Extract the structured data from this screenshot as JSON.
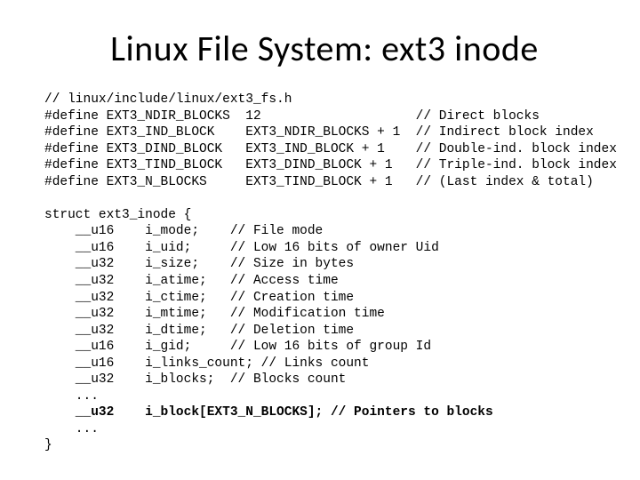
{
  "title": "Linux File System: ext3 inode",
  "defines": {
    "header": "// linux/include/linux/ext3_fs.h",
    "lines": [
      {
        "name": "EXT3_NDIR_BLOCKS",
        "value": "12",
        "comment": "// Direct blocks"
      },
      {
        "name": "EXT3_IND_BLOCK",
        "value": "EXT3_NDIR_BLOCKS + 1",
        "comment": "// Indirect block index"
      },
      {
        "name": "EXT3_DIND_BLOCK",
        "value": "EXT3_IND_BLOCK + 1",
        "comment": "// Double-ind. block index"
      },
      {
        "name": "EXT3_TIND_BLOCK",
        "value": "EXT3_DIND_BLOCK + 1",
        "comment": "// Triple-ind. block index"
      },
      {
        "name": "EXT3_N_BLOCKS",
        "value": "EXT3_TIND_BLOCK + 1",
        "comment": "// (Last index & total)"
      }
    ]
  },
  "struct": {
    "open": "struct ext3_inode {",
    "fields": [
      {
        "type": "__u16",
        "name": "i_mode;",
        "comment": "// File mode"
      },
      {
        "type": "__u16",
        "name": "i_uid;",
        "comment": "// Low 16 bits of owner Uid"
      },
      {
        "type": "__u32",
        "name": "i_size;",
        "comment": "// Size in bytes"
      },
      {
        "type": "__u32",
        "name": "i_atime;",
        "comment": "// Access time"
      },
      {
        "type": "__u32",
        "name": "i_ctime;",
        "comment": "// Creation time"
      },
      {
        "type": "__u32",
        "name": "i_mtime;",
        "comment": "// Modification time"
      },
      {
        "type": "__u32",
        "name": "i_dtime;",
        "comment": "// Deletion time"
      },
      {
        "type": "__u16",
        "name": "i_gid;",
        "comment": "// Low 16 bits of group Id"
      },
      {
        "type": "__u16",
        "name": "i_links_count;",
        "comment": "// Links count"
      },
      {
        "type": "__u32",
        "name": "i_blocks;",
        "comment": "// Blocks count"
      }
    ],
    "ellipsis": "...",
    "bold_type": "__u32",
    "bold_line": "i_block[EXT3_N_BLOCKS]; // Pointers to blocks",
    "close": "}"
  },
  "style": {
    "title_font": "Calibri",
    "title_size_pt": 40,
    "code_font": "Consolas",
    "code_size_pt": 14.5,
    "text_color": "#000000",
    "background_color": "#ffffff",
    "col_define_name": 8,
    "col_define_value": 26,
    "col_define_comment": 48,
    "col_field_type": 4,
    "col_field_name": 13,
    "col_field_comment": 24
  }
}
